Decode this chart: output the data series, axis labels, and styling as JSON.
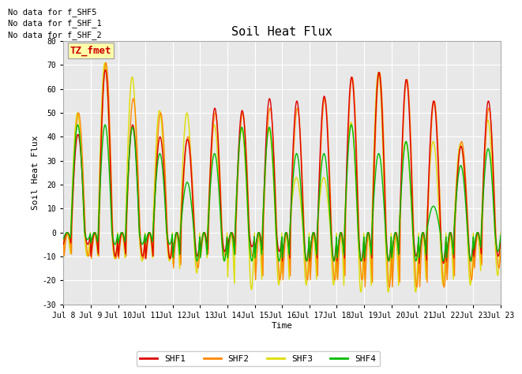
{
  "title": "Soil Heat Flux",
  "ylabel": "Soil Heat Flux",
  "xlabel": "Time",
  "ylim": [
    -30,
    80
  ],
  "fig_bg": "#ffffff",
  "plot_bg": "#e8e8e8",
  "annotations_top_left": [
    "No data for f_SHF5",
    "No data for f_SHF_1",
    "No data for f_SHF_2"
  ],
  "tz_label": "TZ_fmet",
  "xtick_labels": [
    "Jul 8",
    "Jul 9",
    "Jul 10",
    "Jul 11",
    "Jul 12",
    "Jul 13",
    "Jul 14",
    "Jul 15",
    "Jul 16",
    "Jul 17",
    "Jul 18",
    "Jul 19",
    "Jul 20",
    "Jul 21",
    "Jul 22",
    "Jul 23",
    "Jul 23"
  ],
  "series_colors": {
    "SHF1": "#dd0000",
    "SHF2": "#ff8800",
    "SHF3": "#dddd00",
    "SHF4": "#00bb00"
  },
  "days": 16,
  "pts_per_day": 48,
  "day_peaks_shf1": [
    41,
    68,
    45,
    40,
    39,
    52,
    51,
    56,
    55,
    57,
    65,
    67,
    64,
    55,
    36,
    55
  ],
  "day_peaks_shf2": [
    50,
    71,
    56,
    50,
    40,
    50,
    50,
    52,
    52,
    56,
    65,
    67,
    64,
    55,
    38,
    52
  ],
  "day_peaks_shf3": [
    50,
    71,
    65,
    51,
    50,
    45,
    43,
    43,
    23,
    23,
    46,
    67,
    38,
    38,
    37,
    47
  ],
  "day_peaks_shf4": [
    45,
    45,
    44,
    33,
    21,
    33,
    44,
    44,
    33,
    33,
    45,
    33,
    38,
    11,
    28,
    35
  ],
  "day_troughs_shf1": [
    -5,
    -10,
    -10,
    -11,
    -10,
    -8,
    -6,
    -8,
    -12,
    -12,
    -12,
    -12,
    -10,
    -13,
    -12,
    -10
  ],
  "day_troughs_shf2": [
    -10,
    -11,
    -11,
    -11,
    -15,
    -10,
    -10,
    -20,
    -20,
    -20,
    -20,
    -23,
    -23,
    -23,
    -20,
    -15
  ],
  "day_troughs_shf3": [
    -10,
    -11,
    -12,
    -12,
    -17,
    -12,
    -24,
    -22,
    -22,
    -22,
    -25,
    -25,
    -25,
    -22,
    -22,
    -18
  ],
  "day_troughs_shf4": [
    -3,
    -5,
    -5,
    -5,
    -12,
    -12,
    -12,
    -12,
    -12,
    -12,
    -12,
    -12,
    -12,
    -12,
    -12,
    -8
  ],
  "yticks": [
    -30,
    -20,
    -10,
    0,
    10,
    20,
    30,
    40,
    50,
    60,
    70,
    80
  ],
  "line_width": 1.0,
  "title_fontsize": 11,
  "label_fontsize": 8,
  "tick_fontsize": 7,
  "legend_fontsize": 8,
  "annotation_fontsize": 7.5
}
